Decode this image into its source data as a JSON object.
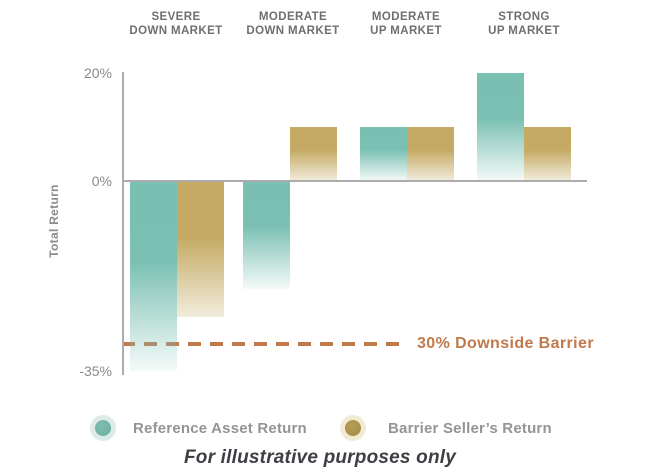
{
  "chart_data": {
    "type": "bar",
    "categories": [
      "Severe Down Market",
      "Moderate Down Market",
      "Moderate Up Market",
      "Strong Up Market"
    ],
    "category_labels": [
      [
        "SEVERE",
        "DOWN MARKET"
      ],
      [
        "MODERATE",
        "DOWN MARKET"
      ],
      [
        "MODERATE",
        "UP MARKET"
      ],
      [
        "STRONG",
        "UP MARKET"
      ]
    ],
    "series": [
      {
        "name": "Reference Asset Return",
        "values_pct": [
          -35,
          -20,
          10,
          20
        ],
        "color": "#79BFB2"
      },
      {
        "name": "Barrier Seller’s Return",
        "values_pct": [
          -25,
          10,
          10,
          10
        ],
        "color": "#C4AA63"
      }
    ],
    "ylabel": "Total Return",
    "yticks": [
      {
        "label": "20%",
        "value": 20
      },
      {
        "label": "0%",
        "value": 0
      },
      {
        "label": "-35%",
        "value": -35
      }
    ],
    "ylim": [
      -37,
      22
    ],
    "grid": false,
    "legend_position": "bottom",
    "annotation": {
      "label": "30% Downside Barrier",
      "value": -30
    }
  },
  "footnote": "For illustrative purposes only",
  "colors": {
    "teal": "#79BFB2",
    "gold": "#C4AA63",
    "barrier": "#C0794B",
    "axis": "#ACACAC",
    "tick_text": "#8A8A8A",
    "category_text": "#6F6F6F",
    "legend_text": "#949494",
    "footnote_text": "#3E3E44"
  }
}
